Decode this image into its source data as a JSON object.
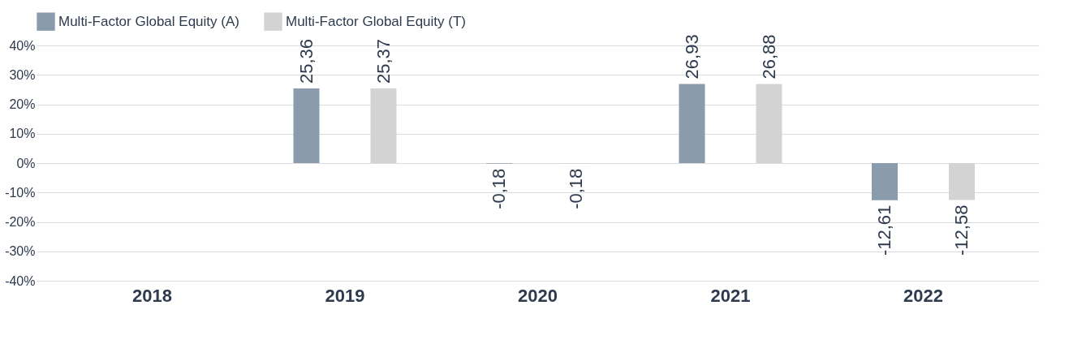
{
  "chart_data": {
    "type": "bar",
    "categories": [
      "2018",
      "2019",
      "2020",
      "2021",
      "2022"
    ],
    "series": [
      {
        "name": "Multi-Factor Global Equity (A)",
        "color": "#8a9bae",
        "values": [
          null,
          25.36,
          -0.18,
          26.93,
          -12.61
        ],
        "value_labels": [
          null,
          "25,36",
          "-0,18",
          "26,93",
          "-12,61"
        ]
      },
      {
        "name": "Multi-Factor Global Equity (T)",
        "color": "#d3d3d3",
        "values": [
          null,
          25.37,
          -0.18,
          26.88,
          -12.58
        ],
        "value_labels": [
          null,
          "25,37",
          "-0,18",
          "26,88",
          "-12,58"
        ]
      }
    ],
    "ylim": [
      -40,
      40
    ],
    "yticks": [
      {
        "value": -40,
        "label": "-40%"
      },
      {
        "value": -30,
        "label": "-30%"
      },
      {
        "value": -20,
        "label": "-20%"
      },
      {
        "value": -10,
        "label": "-10%"
      },
      {
        "value": 0,
        "label": "0%"
      },
      {
        "value": 10,
        "label": "10%"
      },
      {
        "value": 20,
        "label": "20%"
      },
      {
        "value": 30,
        "label": "30%"
      },
      {
        "value": 40,
        "label": "40%"
      }
    ],
    "grid": "y",
    "legend": "top"
  }
}
